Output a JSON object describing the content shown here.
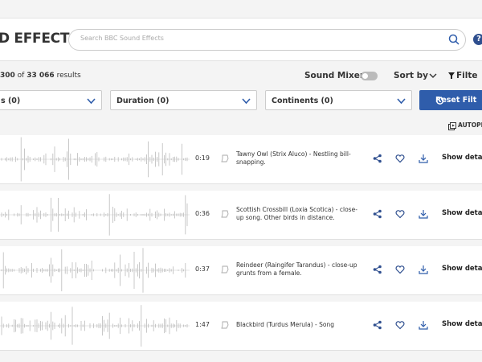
{
  "header": {
    "title": "D EFFECTS",
    "search_placeholder": "Search BBC Sound Effects",
    "help": "?"
  },
  "toolbar": {
    "results": {
      "range_end": "300",
      "of": "of",
      "total": "33 066",
      "suffix": "results"
    },
    "sound_mixer": "Sound Mixer",
    "sort_by": "Sort by",
    "filter": "Filte"
  },
  "filters": {
    "items": [
      "s (0)",
      "Duration (0)",
      "Continents (0)"
    ],
    "reset": "Reset Filt"
  },
  "autoplay": "AUTOPL",
  "results": [
    {
      "duration": "0:19",
      "description": "Tawny Owl (Strix Aluco) - Nestling bill-snapping.",
      "details": "Show detail"
    },
    {
      "duration": "0:36",
      "description": "Scottish Crossbill (Loxia Scotica) - close-up song. Other birds in distance.",
      "details": "Show detail"
    },
    {
      "duration": "0:37",
      "description": "Reindeer (Raingifer Tarandus) - close-up grunts from a female.",
      "details": "Show detail"
    },
    {
      "duration": "1:47",
      "description": "Blackbird (Turdus Merula) - Song",
      "details": "Show detail"
    }
  ]
}
